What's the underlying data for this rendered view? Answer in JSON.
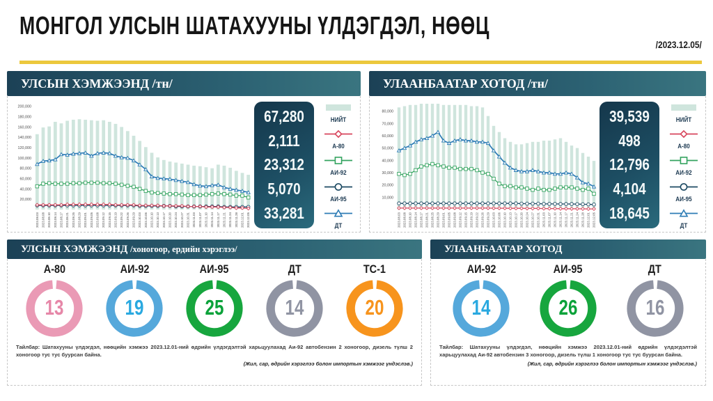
{
  "page": {
    "title": "МОНГОЛ УЛСЫН ШАТАХУУНЫ ҮЛДЭГДЭЛ, НӨӨЦ",
    "date": "/2023.12.05/"
  },
  "colors": {
    "accent_yellow": "#ecc83d",
    "header_dark": "#1c4156",
    "header_light": "#3a7580",
    "bar_mint": "#cfe5dd",
    "a80_red": "#d8455c",
    "ai92_green": "#33a35f",
    "ai95_navy": "#1d4a63",
    "dt_blue": "#2d7cb5"
  },
  "legend": {
    "items": [
      {
        "label": "НИЙТ",
        "marker": "bar",
        "color": "#cfe5dd"
      },
      {
        "label": "А-80",
        "marker": "diamond",
        "color": "#d8455c"
      },
      {
        "label": "АИ-92",
        "marker": "square",
        "color": "#33a35f"
      },
      {
        "label": "АИ-95",
        "marker": "circle",
        "color": "#1d4a63"
      },
      {
        "label": "ДТ",
        "marker": "triangle",
        "color": "#2d7cb5"
      }
    ]
  },
  "top_panels": {
    "national": {
      "title": "УЛСЫН ХЭМЖЭЭНД /тн/",
      "values": [
        "67,280",
        "2,111",
        "23,312",
        "5,070",
        "33,281"
      ]
    },
    "ub": {
      "title": "УЛААНБААТАР ХОТОД /тн/",
      "values": [
        "39,539",
        "498",
        "12,796",
        "4,104",
        "18,645"
      ]
    }
  },
  "chart_data": [
    {
      "type": "bar",
      "title": "УЛСЫН ХЭМЖЭЭНД /тн/",
      "ylabel": "тн",
      "ylim": [
        0,
        205000
      ],
      "ytick_step": 20000,
      "ytick_max": 200000,
      "categories": [
        "2023.08.03",
        "2023.08.08",
        "2023.08.10",
        "2023.08.14",
        "2023.08.17",
        "2023.08.21",
        "2023.08.25",
        "2023.08.29",
        "2023.09.01",
        "2023.09.05",
        "2023.09.08",
        "2023.09.12",
        "2023.09.15",
        "2023.09.19",
        "2023.09.22",
        "2023.09.26",
        "2023.09.29",
        "2023.10.03",
        "2023.10.06",
        "2023.10.10",
        "2023.10.13",
        "2023.10.17",
        "2023.10.20",
        "2023.10.24",
        "2023.10.27",
        "2023.10.31",
        "2023.11.03",
        "2023.11.07",
        "2023.11.10",
        "2023.11.14",
        "2023.11.17",
        "2023.11.21",
        "2023.11.24",
        "2023.11.28",
        "2023.12.01",
        "2023.12.05"
      ],
      "bars": {
        "name": "НИЙТ",
        "color": "#cfe5dd",
        "values": [
          146000,
          159000,
          161000,
          170000,
          167000,
          172000,
          174000,
          175000,
          174000,
          173000,
          172000,
          173000,
          170000,
          166000,
          160000,
          152000,
          143000,
          133000,
          121000,
          110000,
          101000,
          96000,
          93000,
          91000,
          89000,
          87000,
          85000,
          84000,
          82000,
          80000,
          87000,
          85000,
          81000,
          75000,
          71000,
          67280
        ]
      },
      "series": [
        {
          "name": "АИ-95",
          "color": "#1d4a63",
          "marker": "circle",
          "values": [
            8000,
            8000,
            8000,
            8000,
            8000,
            8000,
            8000,
            8000,
            8000,
            8000,
            8000,
            8000,
            8000,
            8000,
            8000,
            8000,
            8000,
            7000,
            7000,
            7000,
            7000,
            7000,
            7000,
            6000,
            6000,
            6000,
            6000,
            6000,
            6000,
            6000,
            6000,
            5000,
            5000,
            5000,
            5000,
            5070
          ]
        },
        {
          "name": "А-80",
          "color": "#d8455c",
          "marker": "diamond",
          "values": [
            9000,
            9000,
            9000,
            9000,
            9000,
            10000,
            10000,
            10000,
            10000,
            10000,
            10000,
            10000,
            10000,
            9000,
            9000,
            9000,
            9000,
            8000,
            8000,
            8000,
            8000,
            7000,
            7000,
            7000,
            7000,
            6000,
            6000,
            6000,
            5000,
            5000,
            5000,
            4000,
            4000,
            3000,
            3000,
            2111
          ]
        },
        {
          "name": "АИ-92",
          "color": "#33a35f",
          "marker": "square",
          "values": [
            45000,
            50000,
            51000,
            50000,
            50000,
            50000,
            51000,
            51000,
            52000,
            52000,
            52000,
            51000,
            51000,
            50000,
            48000,
            46000,
            44000,
            40000,
            36000,
            33000,
            32000,
            31000,
            30000,
            30000,
            29000,
            28000,
            28000,
            28000,
            29000,
            30000,
            31000,
            30000,
            29000,
            27000,
            27000,
            23312
          ]
        },
        {
          "name": "ДТ",
          "color": "#2d7cb5",
          "marker": "triangle",
          "values": [
            88000,
            94000,
            95000,
            97000,
            107000,
            106000,
            108000,
            109000,
            110000,
            104000,
            109000,
            110000,
            109000,
            104000,
            101000,
            100000,
            95000,
            87000,
            78000,
            64000,
            61000,
            60000,
            59000,
            57000,
            55000,
            53000,
            49000,
            46000,
            45000,
            47000,
            48000,
            43000,
            40000,
            38000,
            36000,
            33281
          ]
        }
      ]
    },
    {
      "type": "bar",
      "title": "УЛААНБААТАР ХОТОД /тн/",
      "ylabel": "тн",
      "ylim": [
        0,
        86000
      ],
      "ytick_step": 10000,
      "ytick_max": 80000,
      "categories": [
        "2023.08.03",
        "2023.08.08",
        "2023.08.10",
        "2023.08.14",
        "2023.08.17",
        "2023.08.21",
        "2023.08.25",
        "2023.08.29",
        "2023.09.01",
        "2023.09.05",
        "2023.09.08",
        "2023.09.12",
        "2023.09.15",
        "2023.09.19",
        "2023.09.22",
        "2023.09.26",
        "2023.09.29",
        "2023.10.03",
        "2023.10.06",
        "2023.10.10",
        "2023.10.13",
        "2023.10.17",
        "2023.10.20",
        "2023.10.24",
        "2023.10.27",
        "2023.10.31",
        "2023.11.03",
        "2023.11.07",
        "2023.11.10",
        "2023.11.14",
        "2023.11.17",
        "2023.11.21",
        "2023.11.24",
        "2023.11.28",
        "2023.12.01",
        "2023.12.05"
      ],
      "bars": {
        "name": "НИЙТ",
        "color": "#cfe5dd",
        "values": [
          83000,
          84000,
          85000,
          85000,
          86000,
          86000,
          86000,
          86000,
          85000,
          85000,
          85000,
          85000,
          85000,
          84000,
          84000,
          83000,
          76000,
          68000,
          63000,
          58000,
          55000,
          53000,
          53000,
          54000,
          55000,
          55000,
          56000,
          56000,
          57000,
          58000,
          55000,
          52000,
          50000,
          46000,
          43000,
          39539
        ]
      },
      "series": [
        {
          "name": "АИ-95",
          "color": "#1d4a63",
          "marker": "circle",
          "values": [
            5000,
            5000,
            5000,
            5000,
            5000,
            5000,
            5000,
            5000,
            5000,
            5000,
            5000,
            5000,
            5000,
            5000,
            5000,
            5000,
            5000,
            5000,
            5000,
            5000,
            5000,
            5000,
            4800,
            4800,
            4800,
            4800,
            4600,
            4600,
            4600,
            4500,
            4500,
            4500,
            4400,
            4300,
            4200,
            4104
          ]
        },
        {
          "name": "А-80",
          "color": "#d8455c",
          "marker": "diamond",
          "values": [
            1200,
            1200,
            1200,
            1200,
            1200,
            1200,
            1200,
            1200,
            1200,
            1200,
            1200,
            1200,
            1200,
            1200,
            1200,
            1200,
            1200,
            1100,
            1100,
            1100,
            1000,
            1000,
            1000,
            900,
            900,
            900,
            800,
            800,
            800,
            700,
            700,
            600,
            600,
            550,
            500,
            498
          ]
        },
        {
          "name": "АИ-92",
          "color": "#33a35f",
          "marker": "square",
          "values": [
            29000,
            28000,
            29000,
            32000,
            35000,
            36000,
            37000,
            36000,
            35000,
            34000,
            34000,
            33000,
            33000,
            33000,
            32000,
            30000,
            29000,
            25000,
            21000,
            19000,
            19000,
            18000,
            18000,
            17000,
            16000,
            17000,
            16000,
            16000,
            17000,
            18000,
            18000,
            18000,
            17000,
            16000,
            17000,
            12796
          ]
        },
        {
          "name": "ДТ",
          "color": "#2d7cb5",
          "marker": "triangle",
          "values": [
            48000,
            50000,
            52000,
            55000,
            57000,
            58000,
            60000,
            63000,
            56000,
            54000,
            56000,
            57000,
            56000,
            56000,
            55000,
            55000,
            54000,
            48000,
            43000,
            38000,
            34000,
            32000,
            31000,
            31000,
            32000,
            31000,
            30000,
            30000,
            29000,
            29000,
            30000,
            29000,
            26000,
            22000,
            21000,
            18645
          ]
        }
      ]
    }
  ],
  "day_panels": {
    "national": {
      "title": "УЛСЫН ХЭМЖЭЭНД",
      "subtitle": "/хоногоор, ердийн хэрэглээ/",
      "items": [
        {
          "label": "А-80",
          "value": "13",
          "ring": "#ea9ab5",
          "num": "#e687a8"
        },
        {
          "label": "АИ-92",
          "value": "19",
          "ring": "#55a8db",
          "num": "#2aa9e0"
        },
        {
          "label": "АИ-95",
          "value": "25",
          "ring": "#17a63e",
          "num": "#0ba23a"
        },
        {
          "label": "ДТ",
          "value": "14",
          "ring": "#9094a3",
          "num": "#9094a3"
        },
        {
          "label": "ТС-1",
          "value": "20",
          "ring": "#f7941d",
          "num": "#f7941d"
        }
      ],
      "note": "Тайлбар: Шатахууны үлдэгдэл, нөөцийн хэмжээ 2023.12.01-ний өдрийн үлдэгдэлтэй харьцуулахад Аи-92 автобензин 2 хоногоор, дизель түлш 2 хоногоор тус тус буурсан байна.",
      "source": "(Жил, сар, өдрийн хэрэглээ болон импортын хэмжээг үндэслэв.)"
    },
    "ub": {
      "title": "УЛААНБААТАР ХОТОД",
      "subtitle": "",
      "items": [
        {
          "label": "АИ-92",
          "value": "14",
          "ring": "#55a8db",
          "num": "#2aa9e0"
        },
        {
          "label": "АИ-95",
          "value": "26",
          "ring": "#17a63e",
          "num": "#0ba23a"
        },
        {
          "label": "ДТ",
          "value": "16",
          "ring": "#9094a3",
          "num": "#9094a3"
        }
      ],
      "note": "Тайлбар: Шатахууны үлдэгдэл, нөөцийн хэмжээ 2023.12.01-ний өдрийн үлдэгдэлтэй харьцуулахад Аи-92 автобензин 3 хоногоор, дизель түлш 1 хоногоор тус тус буурсан байна.",
      "source": "(Жил, сар, өдрийн хэрэглээ болон импортын хэмжээг үндэслэв.)"
    }
  }
}
